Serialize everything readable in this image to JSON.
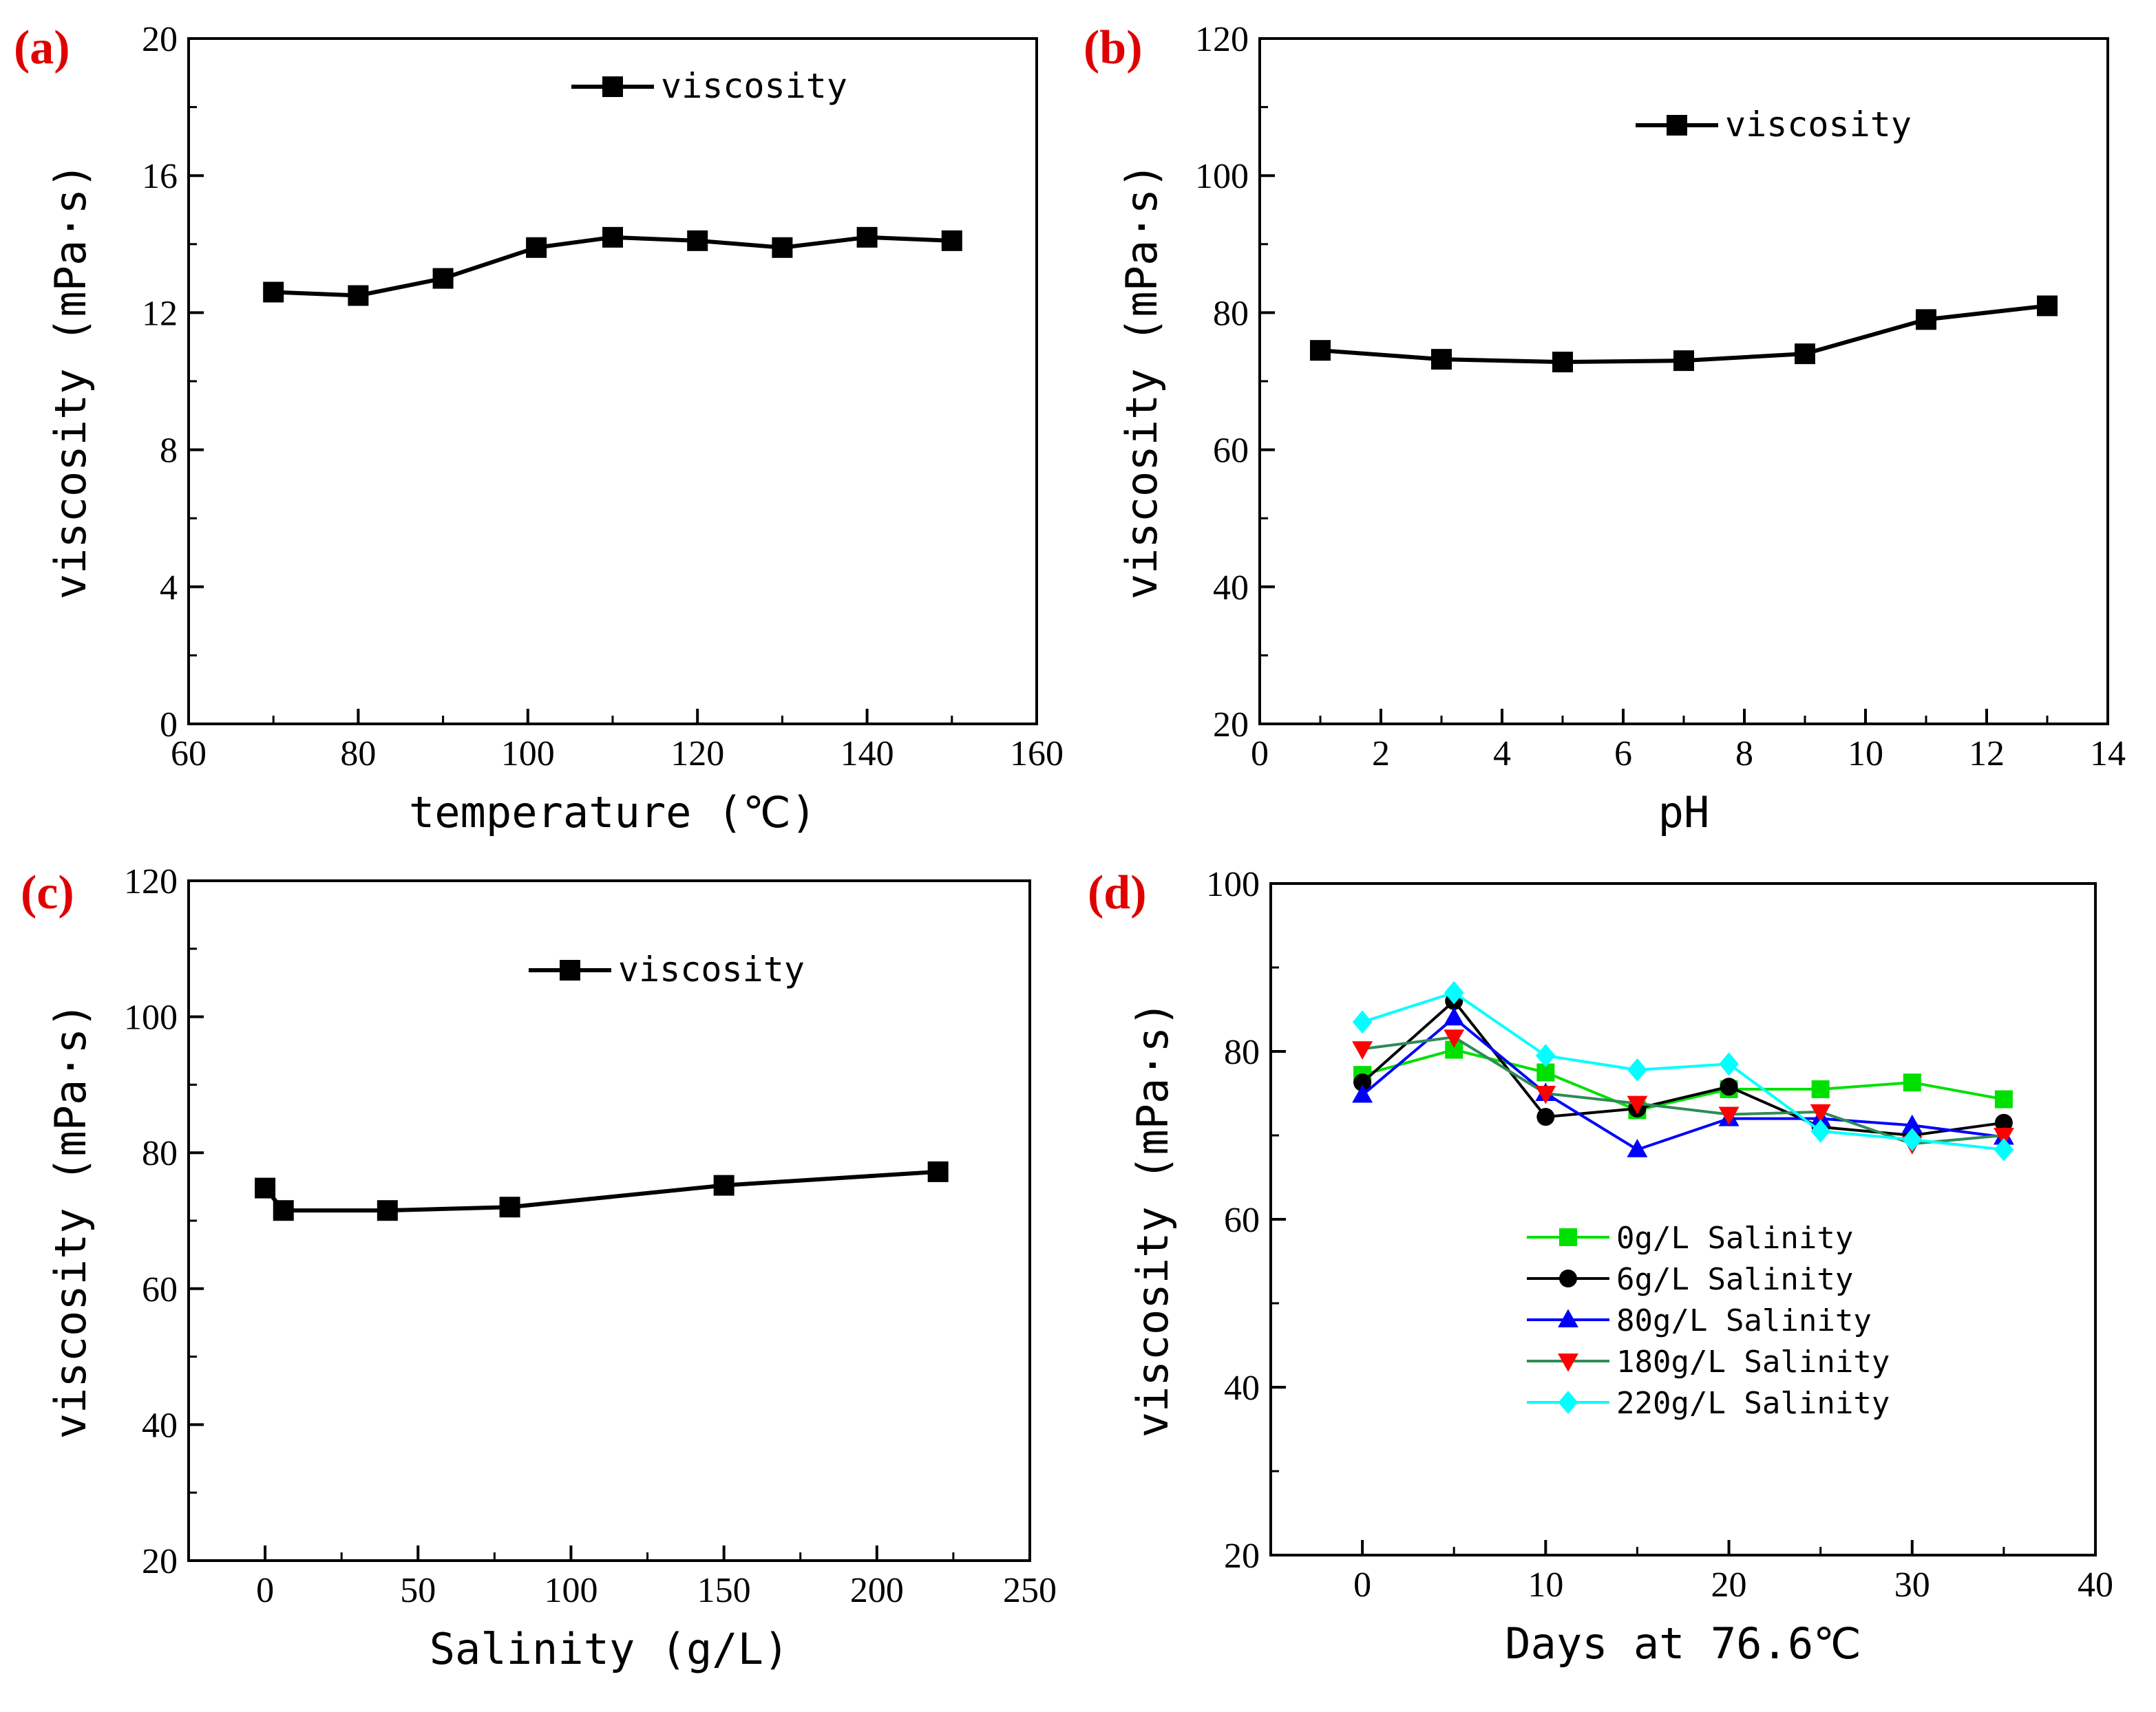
{
  "chart_data": [
    {
      "panel": "(a)",
      "type": "line",
      "xlabel": "temperature (℃)",
      "ylabel": "viscosity (mPa·s)",
      "xlim": [
        60,
        160
      ],
      "ylim": [
        0,
        20
      ],
      "xticks": [
        60,
        80,
        100,
        120,
        140,
        160
      ],
      "yticks": [
        0,
        4,
        8,
        12,
        16,
        20
      ],
      "legend_position": "top-right",
      "series": [
        {
          "name": "viscosity",
          "color": "#000000",
          "marker": "square",
          "x": [
            70,
            80,
            90,
            101,
            110,
            120,
            130,
            140,
            150
          ],
          "y": [
            12.6,
            12.5,
            13.0,
            13.9,
            14.2,
            14.1,
            13.9,
            14.2,
            14.1
          ]
        }
      ]
    },
    {
      "panel": "(b)",
      "type": "line",
      "xlabel": "pH",
      "ylabel": "viscosity (mPa·s)",
      "xlim": [
        0,
        14
      ],
      "ylim": [
        20,
        120
      ],
      "xticks": [
        0,
        2,
        4,
        6,
        8,
        10,
        12,
        14
      ],
      "yticks": [
        20,
        40,
        60,
        80,
        100,
        120
      ],
      "legend_position": "top-right",
      "series": [
        {
          "name": "viscosity",
          "color": "#000000",
          "marker": "square",
          "x": [
            1,
            3,
            5,
            7,
            9,
            11,
            13
          ],
          "y": [
            74.5,
            73.2,
            72.8,
            73.0,
            74.0,
            79.0,
            81.0
          ]
        }
      ]
    },
    {
      "panel": "(c)",
      "type": "line",
      "xlabel": "Salinity (g/L)",
      "ylabel": "viscosity (mPa·s)",
      "xlim": [
        -25,
        250
      ],
      "ylim": [
        20,
        120
      ],
      "xticks": [
        0,
        50,
        100,
        150,
        200,
        250
      ],
      "yticks": [
        20,
        40,
        60,
        80,
        100,
        120
      ],
      "legend_position": "top-right",
      "series": [
        {
          "name": "viscosity",
          "color": "#000000",
          "marker": "square",
          "x": [
            0,
            6,
            40,
            80,
            150,
            220
          ],
          "y": [
            74.8,
            71.5,
            71.5,
            72.0,
            75.2,
            77.2
          ]
        }
      ]
    },
    {
      "panel": "(d)",
      "type": "line",
      "xlabel": "Days at 76.6℃",
      "ylabel": "viscosity (mPa·s)",
      "xlim": [
        -5,
        40
      ],
      "ylim": [
        20,
        100
      ],
      "xticks": [
        0,
        10,
        20,
        30,
        40
      ],
      "yticks": [
        20,
        40,
        60,
        80,
        100
      ],
      "legend_position": "bottom-right",
      "x": [
        0,
        5,
        10,
        15,
        20,
        25,
        30,
        35
      ],
      "series": [
        {
          "name": "0g/L   Salinity",
          "color": "#00e000",
          "marker": "square",
          "values": [
            77.2,
            80.2,
            77.5,
            73.0,
            75.5,
            75.5,
            76.3,
            74.3
          ]
        },
        {
          "name": "6g/L   Salinity",
          "color": "#000000",
          "marker": "circle",
          "values": [
            76.3,
            86.0,
            72.2,
            73.2,
            75.8,
            71.0,
            70.0,
            71.5
          ]
        },
        {
          "name": "80g/L  Salinity",
          "color": "#0000ff",
          "marker": "triangle-up",
          "values": [
            74.8,
            84.0,
            75.0,
            68.3,
            72.0,
            72.0,
            71.2,
            69.8
          ]
        },
        {
          "name": "180g/L Salinity",
          "color": "#ff0000",
          "line_color": "#2e8b57",
          "marker": "triangle-down",
          "values": [
            80.3,
            81.7,
            75.0,
            73.8,
            72.5,
            72.8,
            69.0,
            70.0
          ]
        },
        {
          "name": "220g/L Salinity",
          "color": "#00ffff",
          "marker": "diamond",
          "values": [
            83.5,
            87.0,
            79.5,
            77.8,
            78.5,
            70.5,
            69.5,
            68.3
          ]
        }
      ]
    }
  ]
}
